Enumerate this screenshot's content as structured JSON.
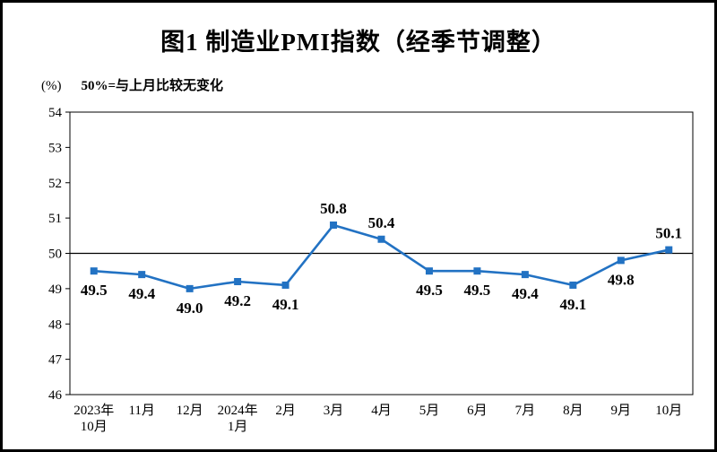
{
  "title": "图1  制造业PMI指数（经季节调整）",
  "y_axis_unit": "(%)",
  "note": "50%=与上月比较无变化",
  "chart_data": {
    "type": "line",
    "title": "图1  制造业PMI指数（经季节调整）",
    "categories": [
      "2023年\n10月",
      "11月",
      "12月",
      "2024年\n1月",
      "2月",
      "3月",
      "4月",
      "5月",
      "6月",
      "7月",
      "8月",
      "9月",
      "10月"
    ],
    "series": [
      {
        "name": "制造业PMI",
        "values": [
          49.5,
          49.4,
          49.0,
          49.2,
          49.1,
          50.8,
          50.4,
          49.5,
          49.5,
          49.4,
          49.1,
          49.8,
          50.1
        ]
      }
    ],
    "ylabel": "(%)",
    "ylim": [
      46,
      54
    ],
    "ytick_step": 1,
    "reference_line": 50,
    "grid": false,
    "legend": "none",
    "line_color": "#2272c3",
    "marker": "square",
    "label_color": "#000000",
    "axis_color": "#000000"
  }
}
